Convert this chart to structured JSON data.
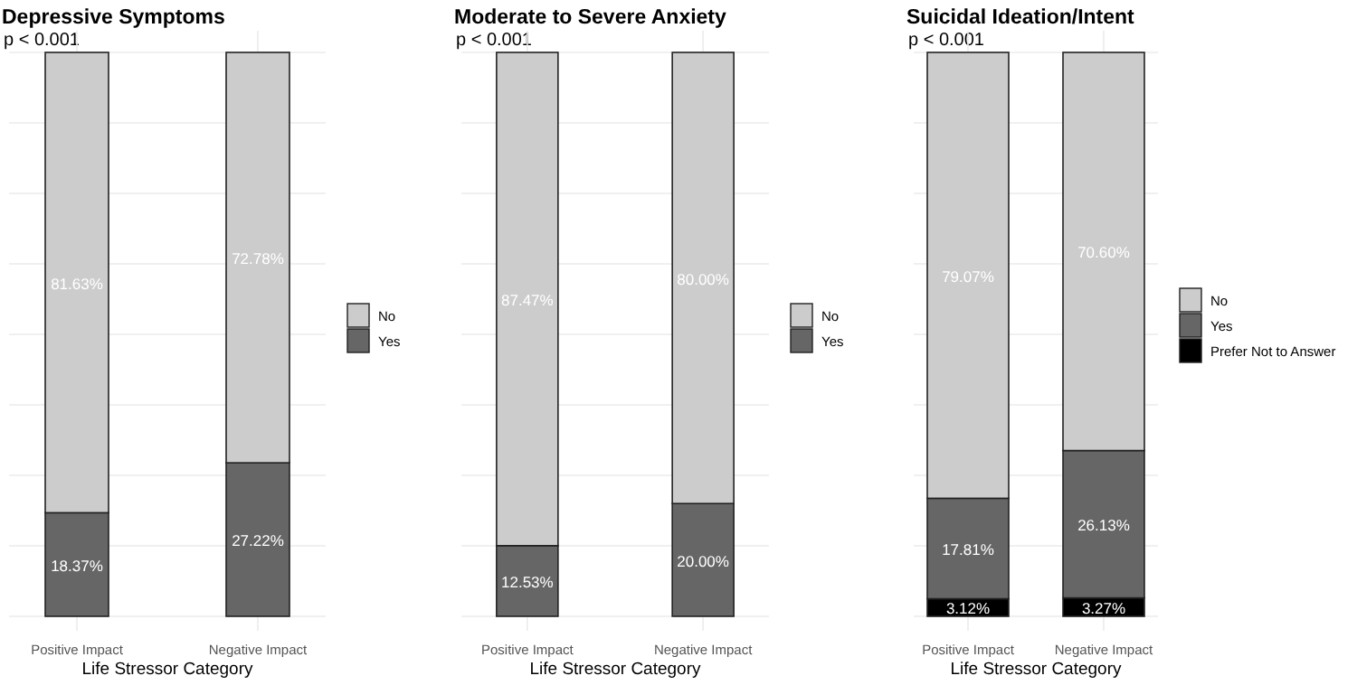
{
  "chart_data": [
    {
      "type": "bar",
      "title": "Depressive Symptoms",
      "subtitle": "p < 0.001",
      "xlabel": "Life Stressor Category",
      "categories": [
        "Positive Impact",
        "Negative Impact"
      ],
      "stacked": true,
      "ylim": [
        0,
        100
      ],
      "yticks": [
        {
          "value": 0,
          "label": null
        },
        {
          "value": 12.5,
          "label": null
        },
        {
          "value": 25,
          "label": null
        },
        {
          "value": 37.5,
          "label": null
        },
        {
          "value": 50,
          "label": null
        },
        {
          "value": 62.5,
          "label": null
        },
        {
          "value": 75,
          "label": null
        },
        {
          "value": 87.5,
          "label": null
        },
        {
          "value": 100,
          "label": null
        }
      ],
      "tick_labels": "x",
      "grid": true,
      "legend": "right",
      "series": [
        {
          "name": "Yes",
          "color": "#666666",
          "values": [
            18.37,
            27.22
          ],
          "value_labels": [
            "18.37%",
            "27.22%"
          ]
        },
        {
          "name": "No",
          "color": "#cccccc",
          "values": [
            81.63,
            72.78
          ],
          "value_labels": [
            "81.63%",
            "72.78%"
          ]
        }
      ]
    },
    {
      "type": "bar",
      "title": "Moderate to Severe Anxiety",
      "subtitle": "p < 0.001",
      "xlabel": "Life Stressor Category",
      "categories": [
        "Positive Impact",
        "Negative Impact"
      ],
      "stacked": true,
      "ylim": [
        0,
        100
      ],
      "yticks": [
        {
          "value": 0,
          "label": null
        },
        {
          "value": 12.5,
          "label": null
        },
        {
          "value": 25,
          "label": null
        },
        {
          "value": 37.5,
          "label": null
        },
        {
          "value": 50,
          "label": null
        },
        {
          "value": 62.5,
          "label": null
        },
        {
          "value": 75,
          "label": null
        },
        {
          "value": 87.5,
          "label": null
        },
        {
          "value": 100,
          "label": null
        }
      ],
      "tick_labels": "x",
      "grid": true,
      "legend": "right",
      "series": [
        {
          "name": "Yes",
          "color": "#666666",
          "values": [
            12.53,
            20.0
          ],
          "value_labels": [
            "12.53%",
            "20.00%"
          ]
        },
        {
          "name": "No",
          "color": "#cccccc",
          "values": [
            87.47,
            80.0
          ],
          "value_labels": [
            "87.47%",
            "80.00%"
          ]
        }
      ]
    },
    {
      "type": "bar",
      "title": "Suicidal Ideation/Intent",
      "subtitle": "p < 0.001",
      "xlabel": "Life Stressor Category",
      "categories": [
        "Positive Impact",
        "Negative Impact"
      ],
      "stacked": true,
      "ylim": [
        0,
        100
      ],
      "yticks": [
        {
          "value": 0,
          "label": null
        },
        {
          "value": 12.5,
          "label": null
        },
        {
          "value": 25,
          "label": null
        },
        {
          "value": 37.5,
          "label": null
        },
        {
          "value": 50,
          "label": null
        },
        {
          "value": 62.5,
          "label": null
        },
        {
          "value": 75,
          "label": null
        },
        {
          "value": 87.5,
          "label": null
        },
        {
          "value": 100,
          "label": null
        }
      ],
      "tick_labels": "x",
      "grid": true,
      "legend": "right",
      "series": [
        {
          "name": "Prefer Not to Answer",
          "color": "#000000",
          "values": [
            3.12,
            3.27
          ],
          "value_labels": [
            "3.12%",
            "3.27%"
          ]
        },
        {
          "name": "Yes",
          "color": "#666666",
          "values": [
            17.81,
            26.13
          ],
          "value_labels": [
            "17.81%",
            "26.13%"
          ]
        },
        {
          "name": "No",
          "color": "#cccccc",
          "values": [
            79.07,
            70.6
          ],
          "value_labels": [
            "79.07%",
            "70.60%"
          ]
        }
      ]
    }
  ]
}
